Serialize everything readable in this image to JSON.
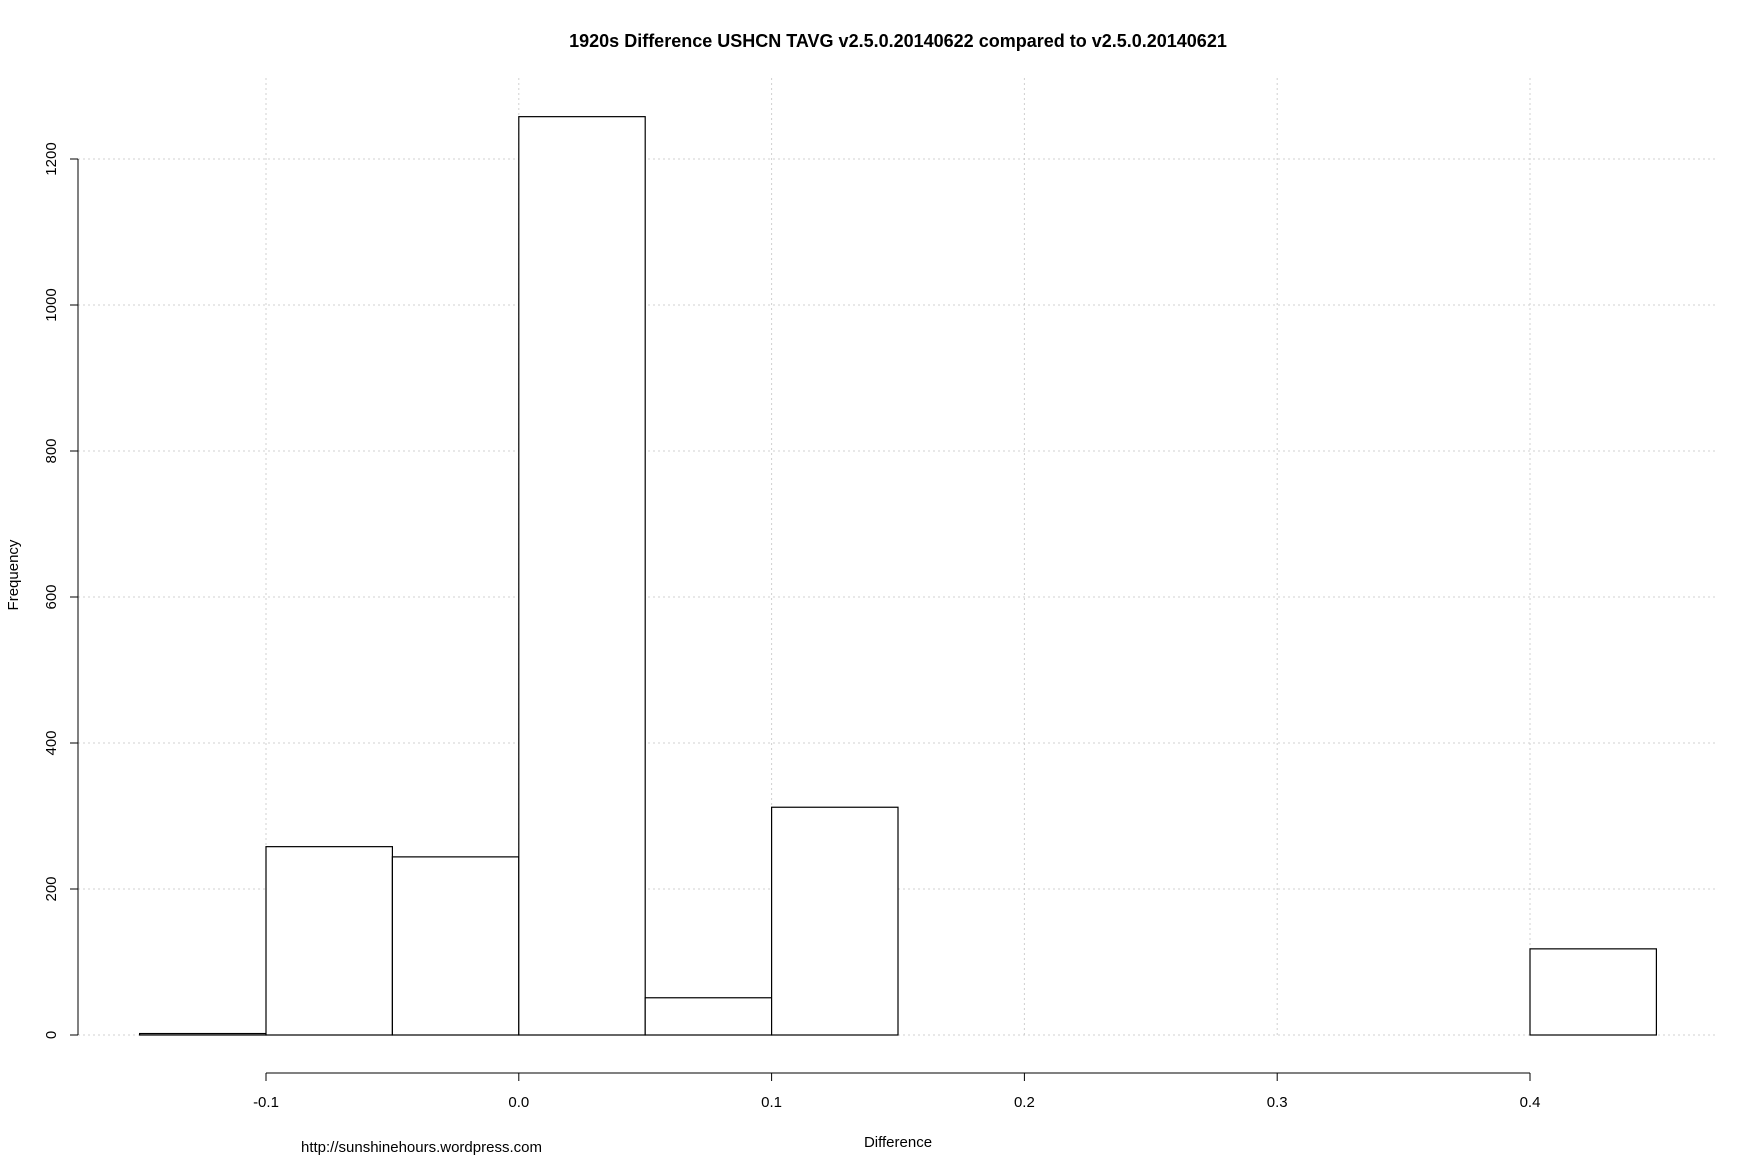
{
  "chart_data": {
    "type": "bar",
    "title": "1920s Difference USHCN TAVG v2.5.0.20140622 compared to v2.5.0.20140621",
    "xlabel": "Difference",
    "ylabel": "Frequency",
    "bin_edges": [
      -0.15,
      -0.1,
      -0.05,
      0.0,
      0.05,
      0.1,
      0.15,
      0.2,
      0.25,
      0.3,
      0.35,
      0.4,
      0.45
    ],
    "values": [
      2,
      258,
      244,
      1258,
      51,
      312,
      0,
      0,
      0,
      0,
      0,
      118
    ],
    "xlim": [
      -0.2,
      0.52
    ],
    "ylim": [
      0,
      1300
    ],
    "x_ticks": [
      "-0.1",
      "0.0",
      "0.1",
      "0.2",
      "0.3",
      "0.4"
    ],
    "y_ticks": [
      "0",
      "200",
      "400",
      "600",
      "800",
      "1000",
      "1200"
    ],
    "grid": true,
    "bar_fill": "#ffffff",
    "bar_stroke": "#000000",
    "grid_color": "#d0d0d0"
  },
  "footer": {
    "credit": "http://sunshinehours.wordpress.com"
  }
}
